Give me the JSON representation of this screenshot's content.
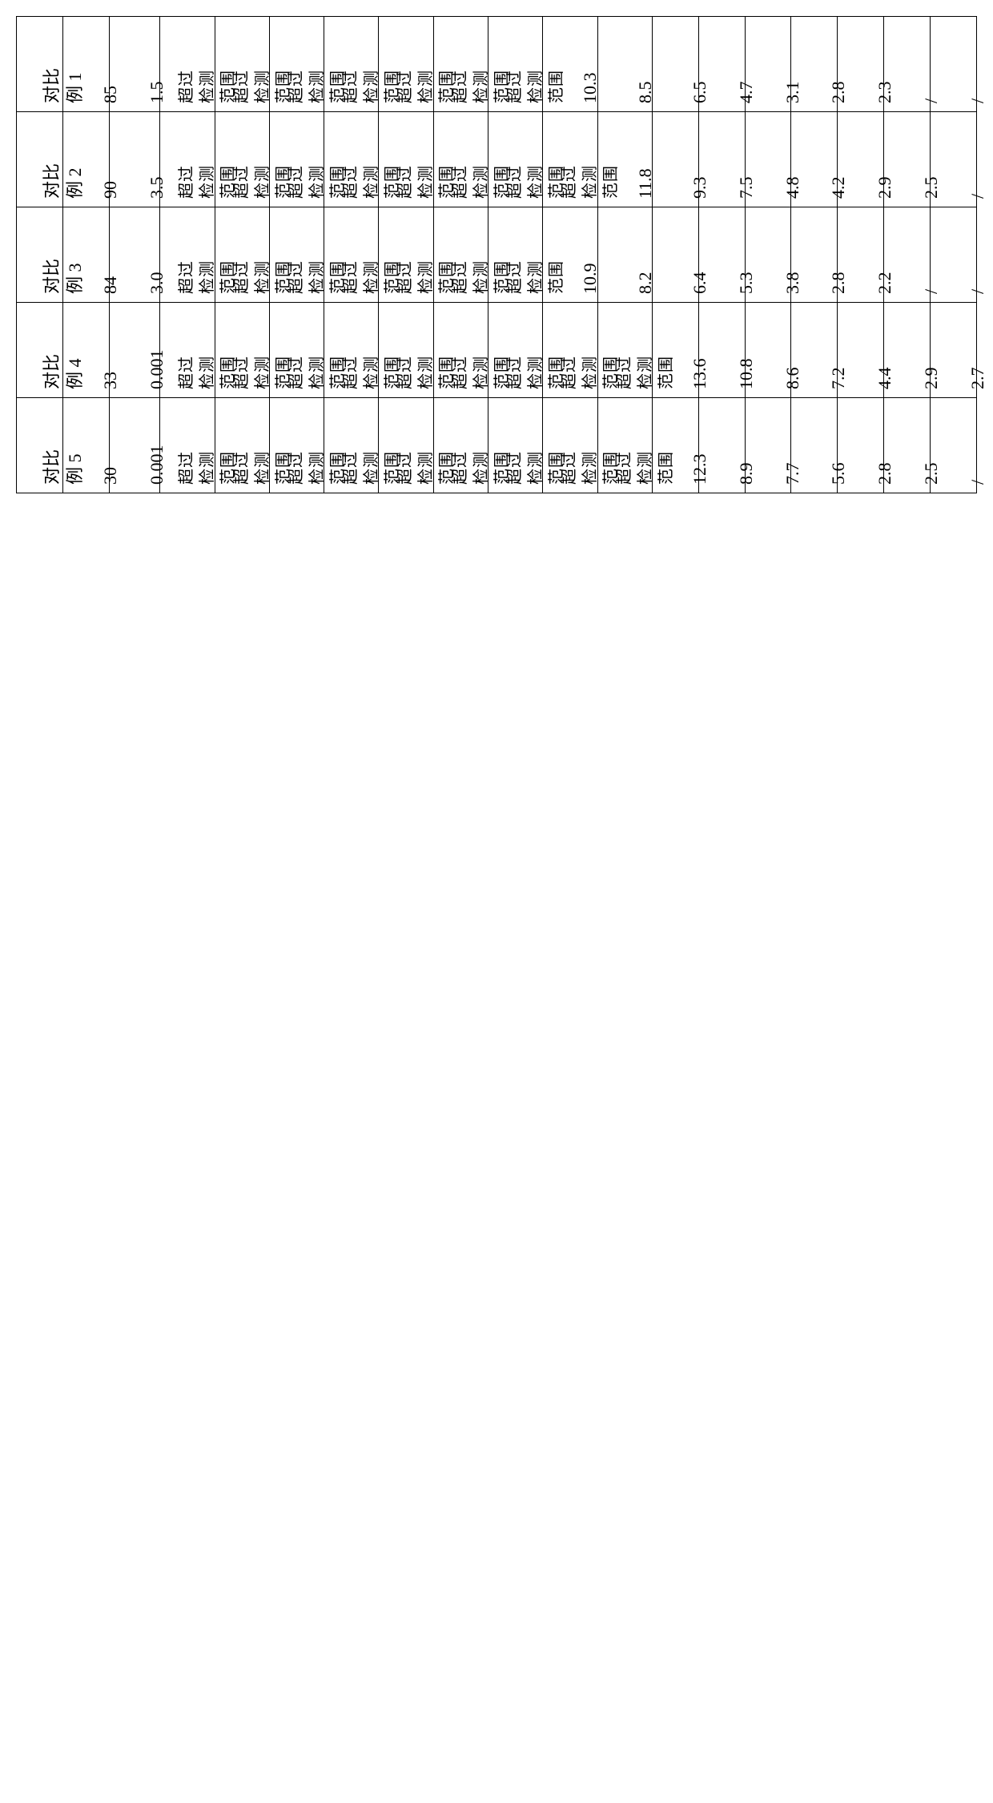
{
  "table": {
    "rows": [
      {
        "label": "对比\n例 1",
        "cells": [
          "85",
          "1.5",
          "超过\n检测\n范围",
          "超过\n检测\n范围",
          "超过\n检测\n范围",
          "超过\n检测\n范围",
          "超过\n检测\n范围",
          "超过\n检测\n范围",
          "超过\n检测\n范围",
          "10.3",
          "8.5",
          "6.5",
          "4.7",
          "3.1",
          "2.8",
          "2.3",
          "/",
          "/"
        ]
      },
      {
        "label": "对比\n例 2",
        "cells": [
          "90",
          "3.5",
          "超过\n检测\n范围",
          "超过\n检测\n范围",
          "超过\n检测\n范围",
          "超过\n检测\n范围",
          "超过\n检测\n范围",
          "超过\n检测\n范围",
          "超过\n检测\n范围",
          "超过\n检测\n范围",
          "11.8",
          "9.3",
          "7.5",
          "4.8",
          "4.2",
          "2.9",
          "2.5",
          "/"
        ]
      },
      {
        "label": "对比\n例 3",
        "cells": [
          "84",
          "3.0",
          "超过\n检测\n范围",
          "超过\n检测\n范围",
          "超过\n检测\n范围",
          "超过\n检测\n范围",
          "超过\n检测\n范围",
          "超过\n检测\n范围",
          "超过\n检测\n范围",
          "10.9",
          "8.2",
          "6.4",
          "5.3",
          "3.8",
          "2.8",
          "2.2",
          "/",
          "/"
        ]
      },
      {
        "label": "对比\n例 4",
        "cells": [
          "33",
          "0.001",
          "超过\n检测\n范围",
          "超过\n检测\n范围",
          "超过\n检测\n范围",
          "超过\n检测\n范围",
          "超过\n检测\n范围",
          "超过\n检测\n范围",
          "超过\n检测\n范围",
          "超过\n检测\n范围",
          "超过\n检测\n范围",
          "13.6",
          "10.8",
          "8.6",
          "7.2",
          "4.4",
          "2.9",
          "2.7"
        ]
      },
      {
        "label": "对比\n例 5",
        "cells": [
          "30",
          "0.001",
          "超过\n检测\n范围",
          "超过\n检测\n范围",
          "超过\n检测\n范围",
          "超过\n检测\n范围",
          "超过\n检测\n范围",
          "超过\n检测\n范围",
          "超过\n检测\n范围",
          "超过\n检测\n范围",
          "超过\n检测\n范围",
          "12.3",
          "8.9",
          "7.7",
          "5.6",
          "2.8",
          "2.5",
          "/"
        ]
      }
    ],
    "col_classes": [
      "c-label",
      "c-num1",
      "c-num2",
      "c-over",
      "c-over",
      "c-over",
      "c-over",
      "c-over",
      "c-over",
      "c-over",
      "c-over",
      "c-over",
      "c-val",
      "c-val",
      "c-val",
      "c-val",
      "c-val",
      "c-val",
      "c-val"
    ],
    "border_color": "#000000",
    "background_color": "#ffffff",
    "text_color": "#000000",
    "font_family": "SimSun",
    "cell_fontsize": 22,
    "over_text": "超过\n检测\n范围"
  }
}
